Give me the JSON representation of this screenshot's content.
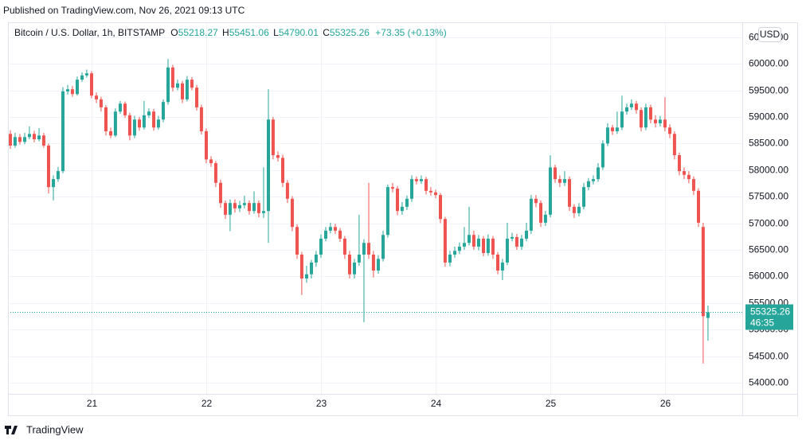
{
  "published": "Published on TradingView.com, Nov 26, 2021 09:13 UTC",
  "footer": "TradingView",
  "chart_data": {
    "type": "candlestick",
    "title": "Bitcoin / U.S. Dollar, 1h, BITSTAMP",
    "ohlc_labels": [
      "O",
      "H",
      "L",
      "C"
    ],
    "change": "+73.35 (+0.13%)",
    "currency": "USD",
    "countdown": "46:35",
    "up_color": "#26a69a",
    "down_color": "#ef5350",
    "grid": true,
    "xlim": [
      20.271,
      26.674
    ],
    "xticks": [
      21,
      22,
      23,
      24,
      25,
      26
    ],
    "ylim": [
      53790,
      60780
    ],
    "yticks": [
      {
        "value": 54000,
        "label": "54000.00"
      },
      {
        "value": 54500,
        "label": "54500.00"
      },
      {
        "value": 55000,
        "label": "55000.00"
      },
      {
        "value": 55500,
        "label": "55500.00"
      },
      {
        "value": 56000,
        "label": "56000.00"
      },
      {
        "value": 56500,
        "label": "56500.00"
      },
      {
        "value": 57000,
        "label": "57000.00"
      },
      {
        "value": 57500,
        "label": "57500.00"
      },
      {
        "value": 58000,
        "label": "58000.00"
      },
      {
        "value": 58500,
        "label": "58500.00"
      },
      {
        "value": 59000,
        "label": "59000.00"
      },
      {
        "value": 59500,
        "label": "59500.00"
      },
      {
        "value": 60000,
        "label": "60000.00"
      },
      {
        "value": 60500,
        "label": "60500.00"
      }
    ],
    "x": [
      20.292,
      20.333,
      20.375,
      20.417,
      20.458,
      20.5,
      20.542,
      20.583,
      20.625,
      20.667,
      20.708,
      20.75,
      20.792,
      20.833,
      20.875,
      20.917,
      20.958,
      21,
      21.042,
      21.083,
      21.125,
      21.167,
      21.208,
      21.25,
      21.292,
      21.333,
      21.375,
      21.417,
      21.458,
      21.5,
      21.542,
      21.583,
      21.625,
      21.667,
      21.708,
      21.75,
      21.792,
      21.833,
      21.875,
      21.917,
      21.958,
      22,
      22.042,
      22.083,
      22.125,
      22.167,
      22.208,
      22.25,
      22.292,
      22.333,
      22.375,
      22.417,
      22.458,
      22.5,
      22.542,
      22.583,
      22.625,
      22.667,
      22.708,
      22.75,
      22.792,
      22.833,
      22.875,
      22.917,
      22.958,
      23,
      23.042,
      23.083,
      23.125,
      23.167,
      23.208,
      23.25,
      23.292,
      23.333,
      23.375,
      23.417,
      23.458,
      23.5,
      23.542,
      23.583,
      23.625,
      23.667,
      23.708,
      23.75,
      23.792,
      23.833,
      23.875,
      23.917,
      23.958,
      24,
      24.042,
      24.083,
      24.125,
      24.167,
      24.208,
      24.25,
      24.292,
      24.333,
      24.375,
      24.417,
      24.458,
      24.5,
      24.542,
      24.583,
      24.625,
      24.667,
      24.708,
      24.75,
      24.792,
      24.833,
      24.875,
      24.917,
      24.958,
      25,
      25.042,
      25.083,
      25.125,
      25.167,
      25.208,
      25.25,
      25.292,
      25.333,
      25.375,
      25.417,
      25.458,
      25.5,
      25.542,
      25.583,
      25.625,
      25.667,
      25.708,
      25.75,
      25.792,
      25.833,
      25.875,
      25.917,
      25.958,
      26,
      26.042,
      26.083,
      26.125,
      26.167,
      26.208,
      26.25,
      26.292,
      26.333,
      26.375
    ],
    "open": [
      58680,
      58460,
      58620,
      58530,
      58620,
      58680,
      58580,
      58650,
      58460,
      57680,
      57830,
      57980,
      59480,
      59520,
      59430,
      59700,
      59780,
      59820,
      59400,
      59330,
      59180,
      58730,
      58650,
      59100,
      59250,
      59030,
      58650,
      58950,
      58800,
      59030,
      59100,
      58800,
      58950,
      59280,
      59930,
      59550,
      59630,
      59330,
      59700,
      59550,
      59180,
      58730,
      58200,
      58130,
      57760,
      57380,
      57160,
      57380,
      57280,
      57340,
      57380,
      57230,
      57380,
      57190,
      57230,
      58950,
      58280,
      58230,
      57760,
      57460,
      56930,
      56410,
      55960,
      56040,
      56260,
      56410,
      56710,
      56860,
      56930,
      56860,
      56710,
      56410,
      56040,
      56260,
      56410,
      56630,
      56410,
      56110,
      56330,
      56780,
      57680,
      57650,
      57230,
      57310,
      57460,
      57830,
      57790,
      57830,
      57610,
      57580,
      57530,
      57080,
      56260,
      56410,
      56480,
      56560,
      56630,
      56780,
      56560,
      56710,
      56440,
      56710,
      56410,
      56110,
      56260,
      56710,
      56740,
      56560,
      56710,
      56860,
      57460,
      57380,
      57010,
      57160,
      58050,
      57830,
      57760,
      57830,
      57310,
      57190,
      57310,
      57680,
      57790,
      57830,
      58050,
      58500,
      58800,
      58730,
      58800,
      59100,
      59180,
      59250,
      59130,
      58800,
      59180,
      58950,
      58880,
      58950,
      58800,
      58680,
      58280,
      57980,
      57910,
      57830,
      57610,
      56930,
      55218.27
    ],
    "high": [
      58750,
      58700,
      58680,
      58700,
      58820,
      58740,
      58790,
      58700,
      58500,
      57900,
      58060,
      59560,
      59600,
      59580,
      59760,
      59840,
      59890,
      59860,
      59460,
      59380,
      59220,
      58800,
      59160,
      59300,
      59290,
      59080,
      59020,
      59000,
      59300,
      59160,
      59150,
      59020,
      59330,
      60090,
      59980,
      59700,
      59680,
      59770,
      59750,
      59600,
      59230,
      58780,
      58260,
      58170,
      57820,
      57430,
      57450,
      57450,
      57420,
      57520,
      57430,
      57600,
      57430,
      58050,
      59520,
      59000,
      58350,
      58290,
      57810,
      57510,
      56980,
      56460,
      56200,
      56310,
      56480,
      56790,
      56930,
      57010,
      56990,
      56910,
      56760,
      56480,
      56330,
      57160,
      56700,
      57760,
      56480,
      56400,
      56860,
      57730,
      57760,
      57700,
      57400,
      57520,
      57900,
      57880,
      57900,
      57870,
      57680,
      57630,
      57570,
      57120,
      56480,
      56560,
      56640,
      56930,
      57310,
      56860,
      56780,
      56760,
      56790,
      56760,
      56460,
      56330,
      57010,
      56820,
      56800,
      56780,
      57010,
      57530,
      57530,
      57430,
      57230,
      58280,
      58100,
      57900,
      57980,
      57880,
      57360,
      57380,
      57760,
      57850,
      57900,
      58130,
      58560,
      58880,
      58850,
      59100,
      59400,
      59250,
      59330,
      59300,
      59180,
      59250,
      59230,
      59030,
      59020,
      59370,
      58860,
      58730,
      58330,
      58050,
      57980,
      57880,
      57660,
      57010,
      55451.06
    ],
    "low": [
      58400,
      58420,
      58480,
      58490,
      58580,
      58520,
      58540,
      58420,
      57560,
      57430,
      57780,
      57940,
      59420,
      59380,
      59400,
      59660,
      59740,
      59350,
      59260,
      59100,
      58650,
      58600,
      58620,
      59060,
      58980,
      58560,
      58600,
      58740,
      58760,
      58980,
      58740,
      58760,
      58900,
      59230,
      59480,
      59500,
      59260,
      59290,
      59500,
      59120,
      58670,
      58130,
      58060,
      57680,
      57290,
      57080,
      56850,
      57200,
      57210,
      57280,
      57160,
      57180,
      57110,
      57100,
      56630,
      58200,
      58160,
      57680,
      57380,
      56850,
      56330,
      55650,
      55880,
      55960,
      56180,
      56350,
      56660,
      56810,
      56800,
      56650,
      56330,
      55960,
      55960,
      56200,
      55140,
      56330,
      55980,
      56050,
      56280,
      56730,
      57580,
      57150,
      57160,
      57250,
      57400,
      57730,
      57740,
      57540,
      57520,
      57470,
      57000,
      56180,
      56190,
      56350,
      56420,
      56500,
      56580,
      56500,
      56490,
      56380,
      56390,
      56330,
      56040,
      55930,
      56210,
      56660,
      56500,
      56500,
      56660,
      56800,
      57300,
      56930,
      56950,
      57110,
      57760,
      57680,
      57700,
      57230,
      57100,
      57130,
      57260,
      57620,
      57730,
      57780,
      58000,
      58450,
      58660,
      58680,
      58750,
      59040,
      59130,
      59060,
      58730,
      58750,
      58880,
      58800,
      58820,
      58730,
      58600,
      58200,
      57900,
      57830,
      57750,
      57530,
      56930,
      54360,
      54790.01
    ],
    "close": [
      58460,
      58620,
      58530,
      58620,
      58680,
      58580,
      58650,
      58460,
      57680,
      57830,
      57980,
      59480,
      59520,
      59430,
      59700,
      59780,
      59820,
      59400,
      59330,
      59180,
      58730,
      58650,
      59100,
      59250,
      59030,
      58650,
      58950,
      58800,
      59030,
      59100,
      58800,
      58950,
      59280,
      59930,
      59550,
      59630,
      59330,
      59700,
      59550,
      59180,
      58730,
      58200,
      58130,
      57760,
      57380,
      57160,
      57380,
      57280,
      57340,
      57380,
      57230,
      57380,
      57190,
      57230,
      58950,
      58280,
      58230,
      57760,
      57460,
      56930,
      56410,
      55960,
      56040,
      56260,
      56410,
      56710,
      56860,
      56930,
      56860,
      56710,
      56410,
      56040,
      56260,
      56410,
      56630,
      56410,
      56110,
      56330,
      56780,
      57680,
      57650,
      57230,
      57310,
      57460,
      57830,
      57790,
      57830,
      57610,
      57580,
      57530,
      57080,
      56260,
      56410,
      56480,
      56560,
      56630,
      56780,
      56560,
      56710,
      56440,
      56710,
      56410,
      56110,
      56260,
      56710,
      56740,
      56560,
      56710,
      56860,
      57460,
      57380,
      57010,
      57160,
      58050,
      57830,
      57760,
      57830,
      57310,
      57190,
      57310,
      57680,
      57790,
      57830,
      58050,
      58500,
      58800,
      58730,
      58800,
      59100,
      59180,
      59250,
      59130,
      58800,
      59180,
      58950,
      58880,
      58950,
      58800,
      58680,
      58280,
      57980,
      57910,
      57830,
      57610,
      57010,
      55251.91,
      55325.26
    ]
  }
}
